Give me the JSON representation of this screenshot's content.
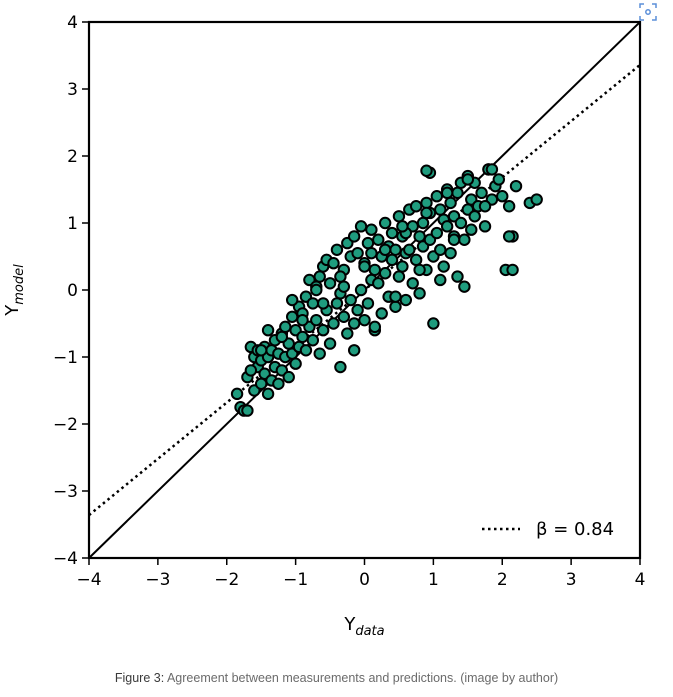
{
  "caption": {
    "label": "Figure 3:",
    "text": " Agreement between measurements and predictions. (image by author)"
  },
  "icons": {
    "zoom": "focus-zoom-icon"
  },
  "colors": {
    "marker_fill": "#1f9c7e",
    "marker_edge": "#000000",
    "line": "#000000"
  },
  "chart_data": {
    "type": "scatter",
    "title": "",
    "xlabel": "Y",
    "xlabel_sub": "data",
    "ylabel": "Y",
    "ylabel_sub": "model",
    "xlim": [
      -4,
      4
    ],
    "ylim": [
      -4,
      4
    ],
    "xticks": [
      -4,
      -3,
      -2,
      -1,
      0,
      1,
      2,
      3,
      4
    ],
    "yticks": [
      -4,
      -3,
      -2,
      -1,
      0,
      1,
      2,
      3,
      4
    ],
    "xtick_labels": [
      "−4",
      "−3",
      "−2",
      "−1",
      "0",
      "1",
      "2",
      "3",
      "4"
    ],
    "ytick_labels": [
      "−4",
      "−3",
      "−2",
      "−1",
      "0",
      "1",
      "2",
      "3",
      "4"
    ],
    "grid": false,
    "legend_position": "bottom-right",
    "lines": [
      {
        "name": "identity",
        "style": "solid",
        "x": [
          -4,
          4
        ],
        "y": [
          -4,
          4
        ]
      },
      {
        "name": "β = 0.84",
        "style": "dotted",
        "slope": 0.84,
        "x": [
          -4,
          4
        ],
        "y": [
          -3.36,
          3.36
        ]
      }
    ],
    "legend": [
      {
        "label": "β = 0.84",
        "style": "dotted"
      }
    ],
    "series": [
      {
        "name": "",
        "x": [
          -1.85,
          -1.8,
          -1.75,
          -1.7,
          -1.65,
          -1.6,
          -1.6,
          -1.55,
          -1.55,
          -1.5,
          -1.5,
          -1.45,
          -1.45,
          -1.4,
          -1.4,
          -1.35,
          -1.35,
          -1.3,
          -1.3,
          -1.25,
          -1.25,
          -1.2,
          -1.2,
          -1.15,
          -1.15,
          -1.1,
          -1.1,
          -1.05,
          -1.05,
          -1.0,
          -1.0,
          -0.95,
          -0.95,
          -0.9,
          -0.9,
          -0.85,
          -0.85,
          -0.8,
          -0.8,
          -0.75,
          -0.75,
          -0.7,
          -0.7,
          -0.65,
          -0.65,
          -0.6,
          -0.6,
          -0.55,
          -0.55,
          -0.5,
          -0.5,
          -0.45,
          -0.45,
          -0.4,
          -0.4,
          -0.35,
          -0.35,
          -0.3,
          -0.3,
          -0.25,
          -0.25,
          -0.2,
          -0.2,
          -0.15,
          -0.15,
          -0.1,
          -0.1,
          -0.05,
          -0.05,
          0.0,
          0.0,
          0.05,
          0.05,
          0.1,
          0.1,
          0.15,
          0.15,
          0.2,
          0.2,
          0.25,
          0.25,
          0.3,
          0.3,
          0.35,
          0.35,
          0.4,
          0.4,
          0.45,
          0.45,
          0.5,
          0.5,
          0.55,
          0.55,
          0.6,
          0.6,
          0.65,
          0.65,
          0.7,
          0.7,
          0.75,
          0.75,
          0.8,
          0.8,
          0.85,
          0.85,
          0.9,
          0.9,
          0.95,
          0.95,
          1.0,
          1.0,
          1.05,
          1.05,
          1.1,
          1.1,
          1.15,
          1.15,
          1.2,
          1.2,
          1.25,
          1.25,
          1.3,
          1.3,
          1.35,
          1.35,
          1.4,
          1.4,
          1.45,
          1.45,
          1.5,
          1.5,
          1.55,
          1.55,
          1.6,
          1.6,
          1.65,
          1.7,
          1.75,
          1.8,
          1.85,
          1.9,
          1.95,
          2.0,
          2.05,
          2.1,
          2.15,
          2.2,
          2.4,
          2.5,
          -1.7,
          -1.65,
          -1.5,
          -1.2,
          -0.9,
          -0.6,
          -0.3,
          0.0,
          0.3,
          0.6,
          0.9,
          1.2,
          1.5,
          1.8,
          0.95,
          0.9,
          -0.15,
          0.15,
          0.45,
          1.85,
          2.15,
          2.1,
          -1.4,
          -1.05,
          -0.7,
          -0.35,
          0.1,
          0.55,
          0.8,
          1.1,
          1.3,
          1.75
        ],
        "y": [
          -1.55,
          -1.75,
          -1.8,
          -1.3,
          -0.85,
          -1.5,
          -1.0,
          -1.15,
          -0.9,
          -1.4,
          -1.05,
          -1.25,
          -0.85,
          -1.55,
          -1.0,
          -1.35,
          -0.9,
          -1.15,
          -0.75,
          -1.4,
          -0.95,
          -1.2,
          -0.65,
          -1.0,
          -0.55,
          -1.3,
          -0.8,
          -0.95,
          -0.4,
          -1.1,
          -0.6,
          -0.85,
          -0.25,
          -0.7,
          -0.35,
          -0.9,
          -0.1,
          -0.55,
          0.15,
          -0.75,
          -0.2,
          -0.45,
          0.05,
          -0.95,
          0.2,
          -0.6,
          0.35,
          -0.3,
          0.45,
          -0.8,
          0.1,
          -0.5,
          0.4,
          -0.2,
          0.6,
          -1.15,
          -0.05,
          -0.4,
          0.3,
          -0.65,
          0.7,
          -0.15,
          0.5,
          -0.5,
          0.8,
          -0.3,
          0.55,
          0.0,
          0.95,
          -0.45,
          0.4,
          -0.2,
          0.7,
          0.15,
          0.9,
          -0.6,
          0.3,
          0.1,
          0.75,
          -0.35,
          0.5,
          0.25,
          1.0,
          -0.1,
          0.65,
          0.45,
          0.85,
          -0.25,
          0.6,
          0.2,
          1.1,
          0.35,
          0.8,
          -0.15,
          0.55,
          0.6,
          1.2,
          0.1,
          0.95,
          0.45,
          1.25,
          -0.05,
          0.8,
          0.65,
          1.0,
          0.3,
          1.3,
          0.75,
          1.15,
          -0.5,
          0.5,
          0.85,
          1.4,
          0.6,
          1.2,
          0.35,
          1.05,
          0.95,
          1.5,
          0.55,
          1.3,
          0.8,
          1.1,
          0.2,
          1.45,
          1.0,
          1.6,
          0.05,
          0.75,
          1.2,
          1.7,
          0.9,
          1.35,
          1.1,
          1.6,
          1.25,
          1.45,
          0.95,
          1.8,
          1.35,
          1.55,
          1.65,
          1.4,
          0.3,
          1.25,
          0.8,
          1.55,
          1.3,
          1.35,
          -1.8,
          -1.2,
          -0.9,
          -0.7,
          -0.45,
          -0.2,
          0.05,
          0.35,
          0.6,
          0.85,
          1.15,
          1.45,
          1.65,
          1.8,
          1.75,
          1.78,
          -0.9,
          -0.55,
          -0.1,
          1.8,
          0.3,
          0.8,
          -0.6,
          -0.15,
          0.0,
          0.2,
          0.55,
          0.95,
          0.3,
          0.15,
          0.75,
          1.25
        ]
      }
    ]
  }
}
